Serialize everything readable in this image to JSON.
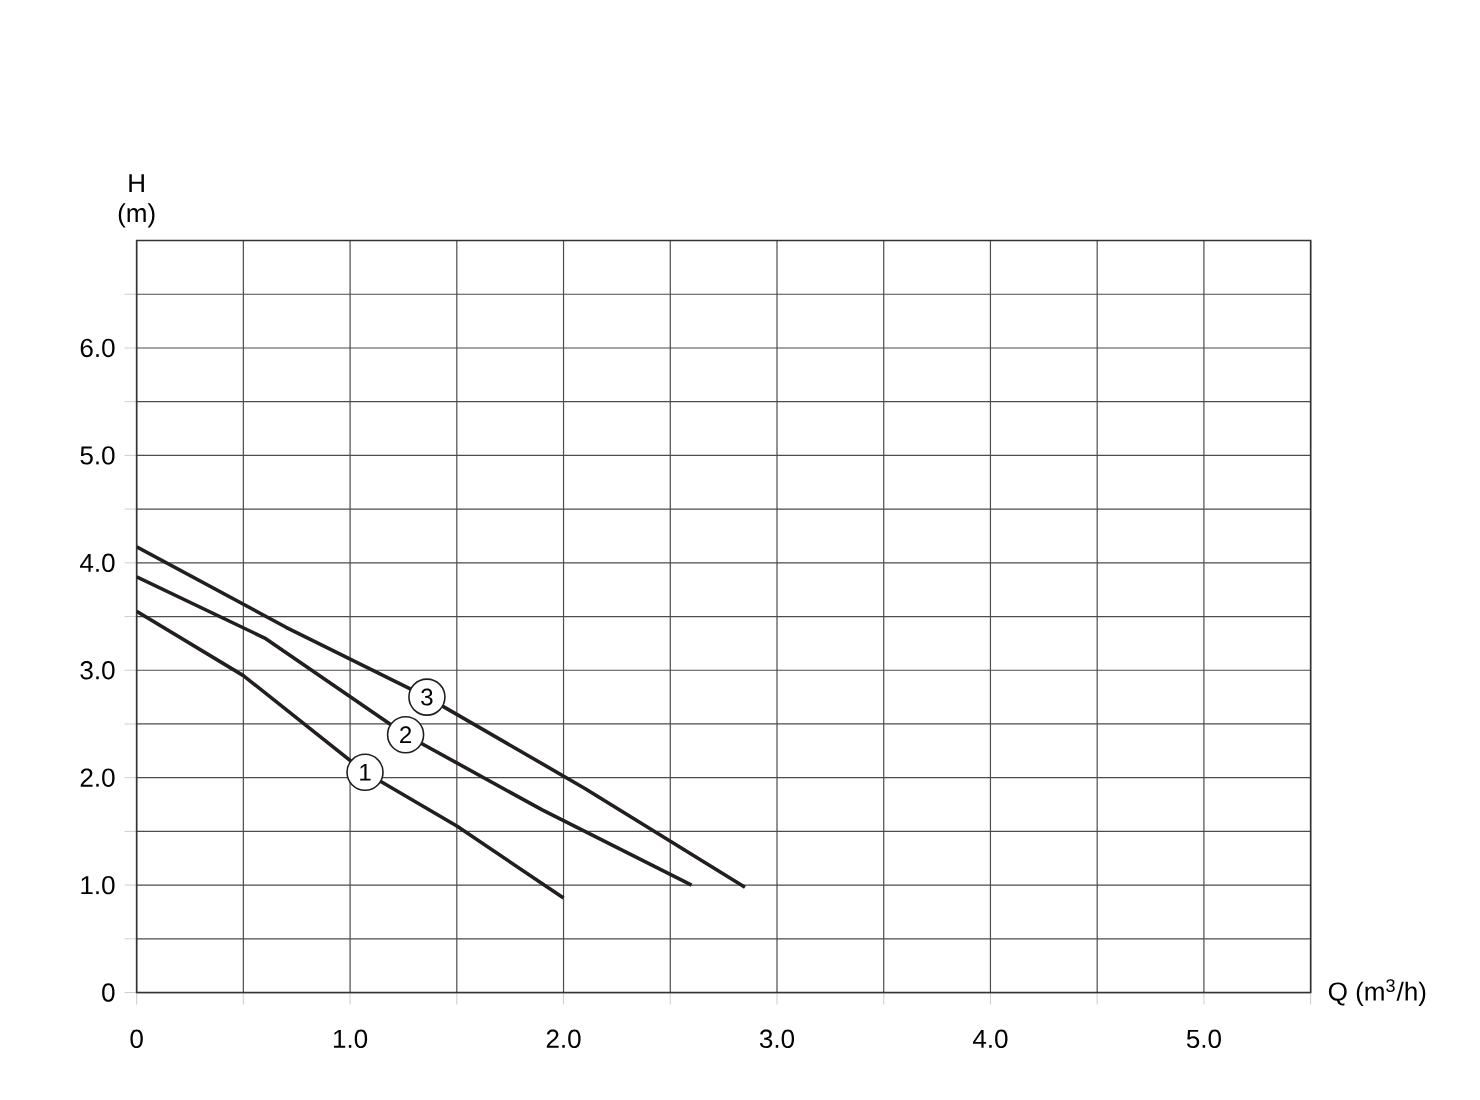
{
  "chart_data": {
    "type": "line",
    "xlabel": "Q (m$^{3}$/h)",
    "ylabel": "H (m)",
    "series": [
      {
        "name": "1",
        "color": "#231f20",
        "x": [
          0,
          0.5,
          1.07,
          1.5,
          2.0
        ],
        "values": [
          3.55,
          2.95,
          2.05,
          1.55,
          0.88
        ]
      },
      {
        "name": "2",
        "color": "#231f20",
        "x": [
          0,
          0.6,
          1.26,
          1.9,
          2.6
        ],
        "values": [
          3.87,
          3.3,
          2.4,
          1.7,
          1.0
        ]
      },
      {
        "name": "3",
        "color": "#231f20",
        "x": [
          0,
          0.7,
          1.36,
          2.1,
          2.85
        ],
        "values": [
          4.15,
          3.4,
          2.75,
          1.9,
          0.98
        ]
      }
    ],
    "xlim": [
      0,
      5.5
    ],
    "ylim": [
      0,
      7
    ],
    "xticks": [
      0,
      {
        "value": 0.5,
        "label": null
      },
      {
        "value": 1,
        "label": "1.0"
      },
      {
        "value": 1.5,
        "label": null
      },
      {
        "value": 2,
        "label": "2.0"
      },
      {
        "value": 2.5,
        "label": null
      },
      {
        "value": 3,
        "label": "3.0"
      },
      {
        "value": 3.5,
        "label": null
      },
      {
        "value": 4,
        "label": "4.0"
      },
      {
        "value": 4.5,
        "label": null
      },
      {
        "value": 5,
        "label": "5.0"
      },
      {
        "value": 5.5,
        "label": null
      }
    ],
    "yticks": [
      0,
      {
        "value": 0.5,
        "label": null
      },
      {
        "value": 1,
        "label": "1.0"
      },
      {
        "value": 1.5,
        "label": null
      },
      {
        "value": 2,
        "label": "2.0"
      },
      {
        "value": 2.5,
        "label": null
      },
      {
        "value": 3,
        "label": "3.0"
      },
      {
        "value": 3.5,
        "label": null
      },
      {
        "value": 4,
        "label": "4.0"
      },
      {
        "value": 4.5,
        "label": null
      },
      {
        "value": 5,
        "label": "5.0"
      },
      {
        "value": 5.5,
        "label": null
      },
      {
        "value": 6,
        "label": "6.0"
      },
      {
        "value": 6.5,
        "label": null
      }
    ],
    "grid": true,
    "marker": "none",
    "line_style": "solid"
  }
}
